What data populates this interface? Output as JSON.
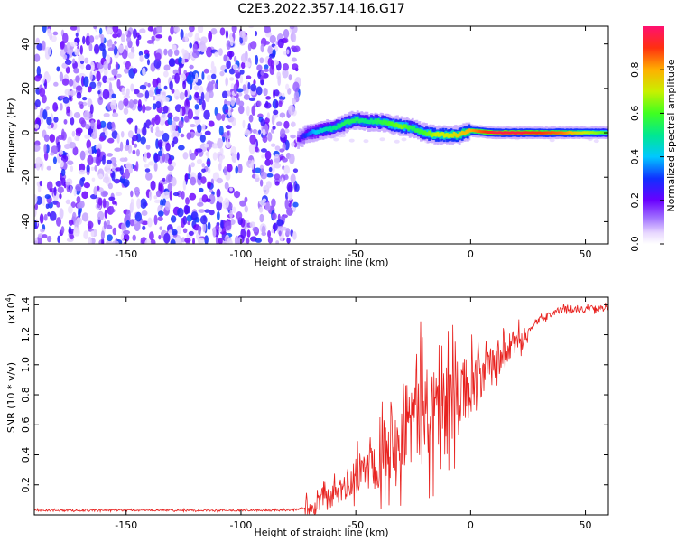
{
  "title": "C2E3.2022.357.14.16.G17",
  "chart_data": [
    {
      "type": "heatmap",
      "xlabel": "Height of straight line (km)",
      "ylabel": "Frequency (Hz)",
      "xlim": [
        -190,
        60
      ],
      "ylim": [
        -50,
        48
      ],
      "xticks": [
        -150,
        -100,
        -50,
        0,
        50
      ],
      "yticks": [
        -40,
        -20,
        0,
        20,
        40
      ],
      "colorbar": {
        "label": "Normalized spectral amplitude",
        "range": [
          0,
          1
        ],
        "ticks": [
          0.0,
          0.2,
          0.4,
          0.6,
          0.8
        ]
      },
      "noise_region": {
        "x": [
          -190,
          -75
        ],
        "freq": [
          -50,
          48
        ]
      },
      "ridge": {
        "x": [
          -75,
          -70,
          -65,
          -60,
          -55,
          -50,
          -45,
          -40,
          -35,
          -30,
          -25,
          -20,
          -15,
          -10,
          -5,
          0,
          10,
          20,
          30,
          40,
          50,
          60
        ],
        "freq": [
          -3,
          0,
          1,
          2,
          4,
          6,
          5,
          5,
          4,
          3,
          2,
          0,
          -1,
          -1,
          -1,
          1,
          0,
          0,
          0,
          0,
          0,
          0
        ],
        "amplitude": [
          0.2,
          0.35,
          0.45,
          0.5,
          0.55,
          0.55,
          0.5,
          0.55,
          0.6,
          0.65,
          0.55,
          0.6,
          0.7,
          0.7,
          0.75,
          0.8,
          0.95,
          0.95,
          0.9,
          0.85,
          0.7,
          0.6
        ]
      }
    },
    {
      "type": "line",
      "xlabel": "Height of straight line (km)",
      "ylabel": "SNR (10 * v/v)",
      "yscale_label": "(x10",
      "yscale_exp": "4",
      "yscale_close": ")",
      "xlim": [
        -190,
        60
      ],
      "ylim": [
        0,
        1.45
      ],
      "xticks": [
        -150,
        -100,
        -50,
        0,
        50
      ],
      "yticks": [
        0.2,
        0.4,
        0.6,
        0.8,
        1.0,
        1.2,
        1.4
      ],
      "series": [
        {
          "color": "#e8211e",
          "trend_x": [
            -190,
            -80,
            -70,
            -60,
            -50,
            -40,
            -30,
            -20,
            -10,
            0,
            10,
            20,
            30,
            40,
            50,
            60
          ],
          "trend_y": [
            0.03,
            0.03,
            0.05,
            0.12,
            0.25,
            0.4,
            0.6,
            0.7,
            0.75,
            0.85,
            1.0,
            1.15,
            1.3,
            1.37,
            1.37,
            1.38
          ]
        }
      ]
    }
  ]
}
